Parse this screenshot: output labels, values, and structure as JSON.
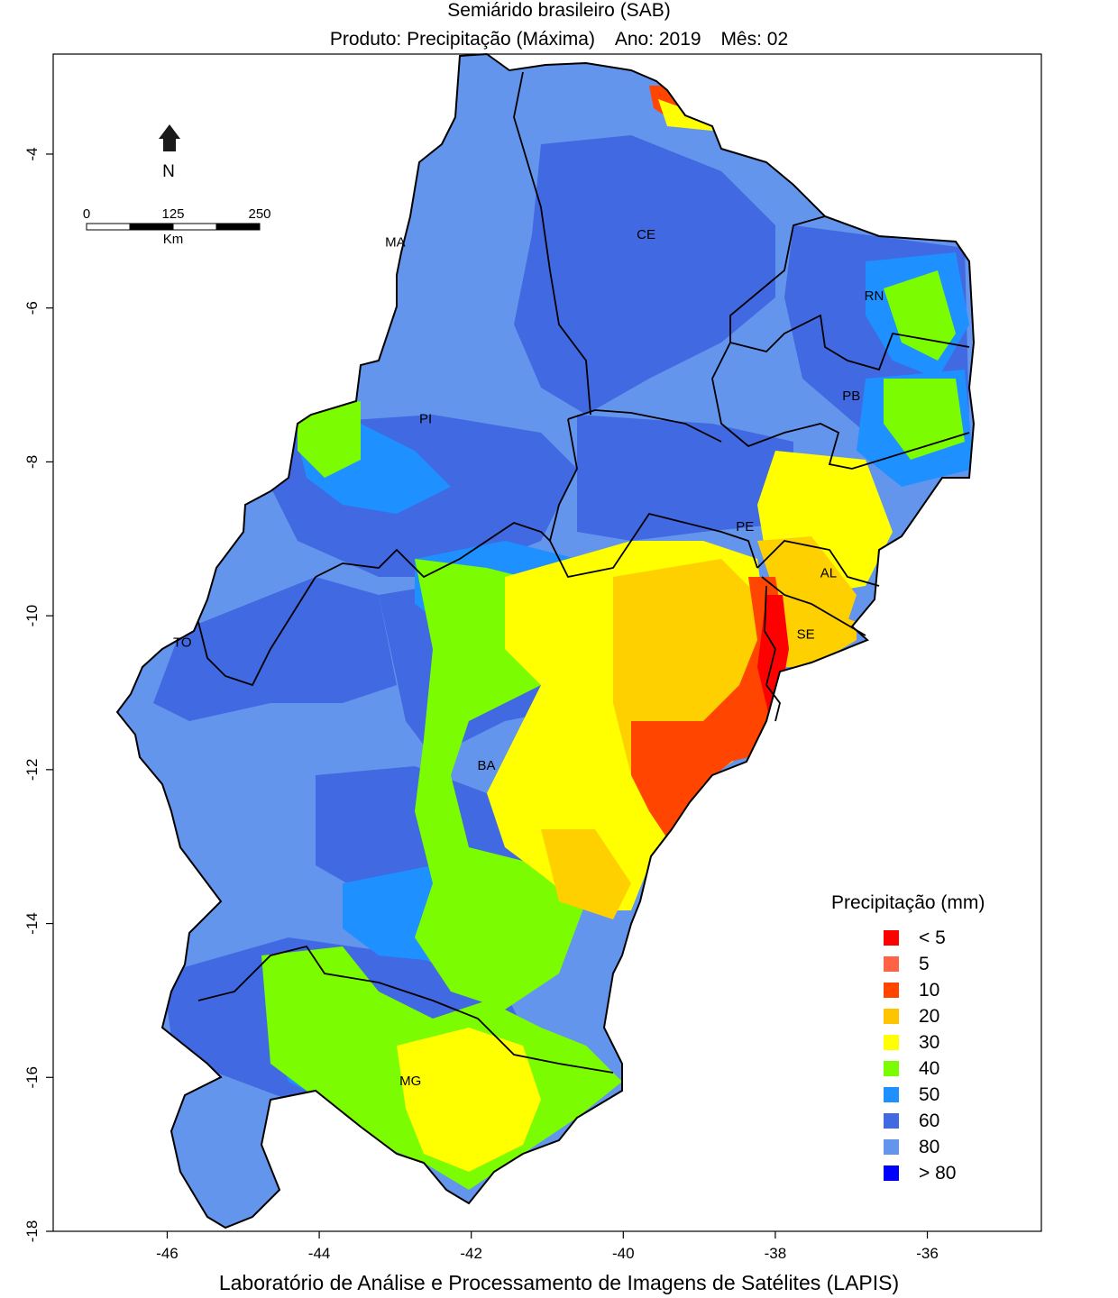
{
  "title": "Semiárido brasileiro (SAB)",
  "subtitle": {
    "product": "Produto: Precipitação (Máxima)",
    "year": "Ano:  2019",
    "month": "Mês:  02"
  },
  "footer": "Laboratório de Análise e Processamento de Imagens de Satélites (LAPIS)",
  "north_arrow_label": "N",
  "scale_bar": {
    "labels": [
      "0",
      "125",
      "250"
    ],
    "unit": "Km"
  },
  "axes": {
    "x_ticks": [
      -46,
      -44,
      -42,
      -40,
      -38,
      -36
    ],
    "y_ticks": [
      -4,
      -6,
      -8,
      -10,
      -12,
      -14,
      -16,
      -18
    ],
    "xlim": [
      -47.5,
      -34.5
    ],
    "ylim": [
      -18,
      -2.7
    ]
  },
  "states": [
    {
      "label": "MA",
      "lon": -43.0,
      "lat": -5.2
    },
    {
      "label": "CE",
      "lon": -39.7,
      "lat": -5.1
    },
    {
      "label": "RN",
      "lon": -36.7,
      "lat": -5.9
    },
    {
      "label": "PB",
      "lon": -37.0,
      "lat": -7.2
    },
    {
      "label": "PI",
      "lon": -42.6,
      "lat": -7.5
    },
    {
      "label": "PE",
      "lon": -38.4,
      "lat": -8.9
    },
    {
      "label": "AL",
      "lon": -37.3,
      "lat": -9.5
    },
    {
      "label": "SE",
      "lon": -37.6,
      "lat": -10.3
    },
    {
      "label": "TO",
      "lon": -45.8,
      "lat": -10.4
    },
    {
      "label": "BA",
      "lon": -41.8,
      "lat": -12.0
    },
    {
      "label": "MG",
      "lon": -42.8,
      "lat": -16.1
    }
  ],
  "legend": {
    "title": "Precipitação (mm)",
    "items": [
      {
        "label": "< 5",
        "color": "#ff0000"
      },
      {
        "label": "5",
        "color": "#ff6347"
      },
      {
        "label": "10",
        "color": "#ff4500"
      },
      {
        "label": "20",
        "color": "#ffc400"
      },
      {
        "label": "30",
        "color": "#ffff00"
      },
      {
        "label": "40",
        "color": "#7cfc00"
      },
      {
        "label": "50",
        "color": "#1e90ff"
      },
      {
        "label": "60",
        "color": "#4169e1"
      },
      {
        "label": "80",
        "color": "#6495ed"
      },
      {
        "label": "> 80",
        "color": "#0000ff"
      }
    ]
  }
}
